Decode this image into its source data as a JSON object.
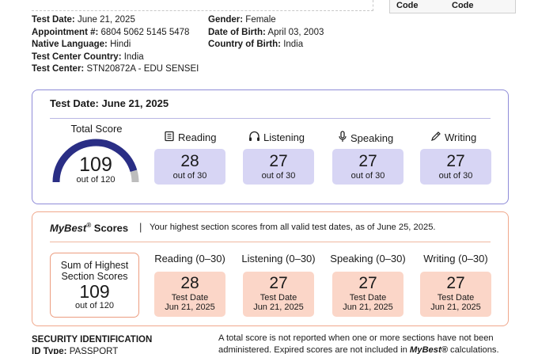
{
  "header": {
    "code_left": "Code",
    "code_right": "Code"
  },
  "candidate": {
    "left": [
      {
        "label": "Test Date:",
        "value": "June 21, 2025"
      },
      {
        "label": "Appointment #:",
        "value": "6804 5062 5145 5478"
      },
      {
        "label": "Native Language:",
        "value": "Hindi"
      },
      {
        "label": "Test Center Country:",
        "value": "India"
      },
      {
        "label": "Test Center:",
        "value": "STN20872A - EDU SENSEI"
      }
    ],
    "right": [
      {
        "label": "Gender:",
        "value": "Female"
      },
      {
        "label": "Date of Birth:",
        "value": "April 03, 2003"
      },
      {
        "label": "Country of Birth:",
        "value": "India"
      }
    ]
  },
  "test_scores": {
    "title": "Test Date: June 21, 2025",
    "total_label": "Total Score",
    "total": "109",
    "total_out": "out of 120",
    "total_fraction": 0.908,
    "colors": {
      "gauge_fill": "#2a2e85",
      "gauge_rest": "#bdbdbd",
      "box": "#d7d5f4",
      "border": "#8f8cd8"
    },
    "sections": [
      {
        "name": "Reading",
        "icon": "book-icon",
        "score": "28",
        "out": "out of 30"
      },
      {
        "name": "Listening",
        "icon": "headphones-icon",
        "score": "27",
        "out": "out of 30"
      },
      {
        "name": "Speaking",
        "icon": "microphone-icon",
        "score": "27",
        "out": "out of 30"
      },
      {
        "name": "Writing",
        "icon": "pencil-icon",
        "score": "27",
        "out": "out of 30"
      }
    ]
  },
  "mybest": {
    "title_brand": "MyBest",
    "title_mark": "®",
    "title_rest": " Scores",
    "separator": "|",
    "description": "Your highest section scores from all valid test dates, as of June 25, 2025.",
    "sum_label_1": "Sum of Highest",
    "sum_label_2": "Section Scores",
    "sum_total": "109",
    "sum_out": "out of 120",
    "colors": {
      "box": "#fbd6c8",
      "border": "#f0a88c"
    },
    "sections": [
      {
        "name": "Reading (0–30)",
        "score": "28",
        "date_label": "Test Date",
        "date": "Jun 21, 2025"
      },
      {
        "name": "Listening (0–30)",
        "score": "27",
        "date_label": "Test Date",
        "date": "Jun 21, 2025"
      },
      {
        "name": "Speaking (0–30)",
        "score": "27",
        "date_label": "Test Date",
        "date": "Jun 21, 2025"
      },
      {
        "name": "Writing (0–30)",
        "score": "27",
        "date_label": "Test Date",
        "date": "Jun 21, 2025"
      }
    ]
  },
  "security": {
    "heading": "SECURITY IDENTIFICATION",
    "id_type_label": "ID Type:",
    "id_type_value": "PASSPORT"
  },
  "footnote": {
    "text_1": "A total score is not reported when one or more sections have not been administered. Expired scores are not included in ",
    "brand": "MyBest®",
    "text_2": " calculations."
  }
}
